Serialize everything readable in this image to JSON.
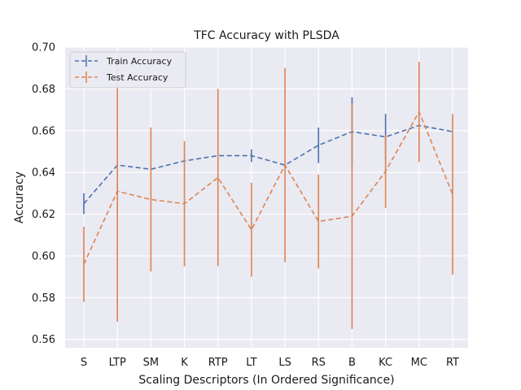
{
  "chart_data": {
    "type": "line",
    "title": "TFC Accuracy with PLSDA",
    "xlabel": "Scaling Descriptors (In Ordered Significance)",
    "ylabel": "Accuracy",
    "categories": [
      "S",
      "LTP",
      "SM",
      "K",
      "RTP",
      "LT",
      "LS",
      "RS",
      "B",
      "KC",
      "MC",
      "RT"
    ],
    "ylim": [
      0.556,
      0.7
    ],
    "yticks": [
      "0.56",
      "0.58",
      "0.60",
      "0.62",
      "0.64",
      "0.66",
      "0.68",
      "0.70"
    ],
    "grid": true,
    "legend_position": "top-left",
    "series": [
      {
        "name": "Train Accuracy",
        "color": "#4c72b0",
        "values": [
          0.625,
          0.6435,
          0.6415,
          0.6455,
          0.648,
          0.648,
          0.6435,
          0.653,
          0.6595,
          0.657,
          0.6625,
          0.6595
        ],
        "errors": [
          0.005,
          0.0,
          0.0,
          0.0,
          0.0,
          0.003,
          0.0,
          0.0085,
          0.0165,
          0.011,
          0.0,
          0.0
        ]
      },
      {
        "name": "Test Accuracy",
        "color": "#dd8452",
        "values": [
          0.596,
          0.631,
          0.627,
          0.625,
          0.6375,
          0.6125,
          0.6435,
          0.6165,
          0.619,
          0.6405,
          0.669,
          0.6295
        ],
        "errors": [
          0.018,
          0.0625,
          0.0345,
          0.03,
          0.0425,
          0.0225,
          0.0465,
          0.0225,
          0.054,
          0.0175,
          0.024,
          0.0385
        ]
      }
    ]
  }
}
